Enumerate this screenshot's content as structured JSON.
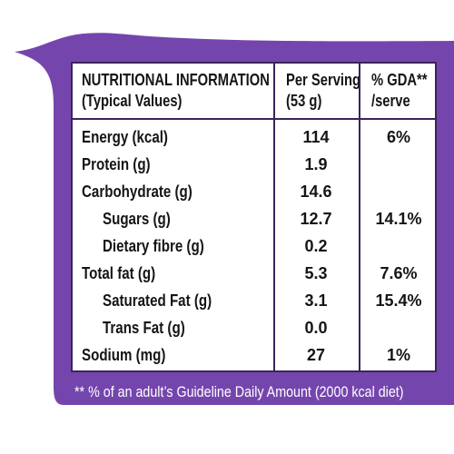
{
  "colors": {
    "background": "#ffffff",
    "panel": "#7446ad",
    "border": "#3a2459",
    "text": "#151515",
    "footnote": "#ffffff"
  },
  "table": {
    "headers": {
      "nutrient_line_1": "NUTRITIONAL INFORMATION",
      "nutrient_line_2": "(Typical Values)",
      "serving_line_1": "Per Serving",
      "serving_line_2": "(53 g)",
      "gda_line_1": "% GDA**",
      "gda_line_2": "/serve"
    },
    "rows": [
      {
        "nutrient": "Energy (kcal)",
        "per_serving": "114",
        "gda": "6%"
      },
      {
        "nutrient": "Protein (g)",
        "per_serving": "1.9",
        "gda": ""
      },
      {
        "nutrient": "Carbohydrate (g)",
        "per_serving": "14.6",
        "gda": ""
      },
      {
        "nutrient": "Sugars (g)",
        "per_serving": "12.7",
        "gda": "14.1%"
      },
      {
        "nutrient": "Dietary fibre (g)",
        "per_serving": "0.2",
        "gda": ""
      },
      {
        "nutrient": "Total fat (g)",
        "per_serving": "5.3",
        "gda": "7.6%"
      },
      {
        "nutrient": "Saturated Fat (g)",
        "per_serving": "3.1",
        "gda": "15.4%"
      },
      {
        "nutrient": "Trans Fat (g)",
        "per_serving": "0.0",
        "gda": ""
      },
      {
        "nutrient": "Sodium (mg)",
        "per_serving": "27",
        "gda": "1%"
      }
    ]
  },
  "footnote": "** % of an adult’s Guideline Daily Amount (2000 kcal diet)"
}
